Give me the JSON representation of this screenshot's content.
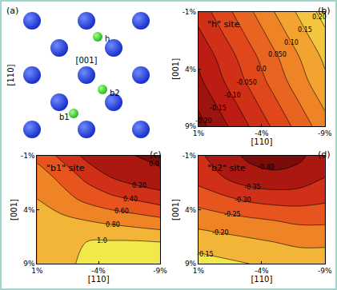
{
  "diagram": {
    "panel": "(a)",
    "sites": [
      "h",
      "b1",
      "b2"
    ],
    "x_axis_label": "[001]",
    "y_axis_label": "[110]"
  },
  "chart_data": [
    {
      "type": "contour",
      "panel": "(b)",
      "label": "\"h\" site",
      "x_label": "[110]",
      "y_label": "[001]",
      "x": [
        -9,
        -7,
        -5,
        -3,
        -1,
        1
      ],
      "y": [
        -1,
        1,
        3,
        5,
        7,
        9
      ],
      "z": [
        [
          0.22,
          0.16,
          0.1,
          0.04,
          -0.02,
          -0.08
        ],
        [
          0.19,
          0.13,
          0.07,
          0.01,
          -0.05,
          -0.11
        ],
        [
          0.16,
          0.1,
          0.04,
          -0.02,
          -0.08,
          -0.14
        ],
        [
          0.14,
          0.08,
          0.02,
          -0.04,
          -0.1,
          -0.16
        ],
        [
          0.11,
          0.05,
          -0.01,
          -0.07,
          -0.13,
          -0.19
        ],
        [
          0.08,
          0.02,
          -0.04,
          -0.1,
          -0.16,
          -0.22
        ]
      ],
      "xlim": [
        1,
        -9
      ],
      "ylim": [
        9,
        -1
      ],
      "xticks": [
        {
          "value": 1,
          "label": "1%"
        },
        {
          "value": -4,
          "label": "-4%"
        },
        {
          "value": -9,
          "label": "-9%"
        }
      ],
      "yticks": [
        {
          "value": -1,
          "label": "-1%"
        },
        {
          "value": 4,
          "label": "4%"
        },
        {
          "value": 9,
          "label": "9%"
        }
      ],
      "contour_levels": [
        {
          "value": -0.2,
          "label": "-0.20"
        },
        {
          "value": -0.15,
          "label": "-0.15"
        },
        {
          "value": -0.1,
          "label": "-0.10"
        },
        {
          "value": -0.05,
          "label": "-0.050"
        },
        {
          "value": 0,
          "label": "0.0"
        },
        {
          "value": 0.05,
          "label": "0.050"
        },
        {
          "value": 0.1,
          "label": "0.10"
        },
        {
          "value": 0.15,
          "label": "0.15"
        },
        {
          "value": 0.2,
          "label": "0.20"
        }
      ]
    },
    {
      "type": "contour",
      "panel": "(c)",
      "label": "\"b1\" site",
      "x_label": "[110]",
      "y_label": "[001]",
      "x": [
        -9,
        -7,
        -5,
        -3,
        -1,
        1
      ],
      "y": [
        -1,
        1,
        3,
        5,
        7,
        9
      ],
      "z": [
        [
          -0.05,
          0.0,
          0.05,
          0.15,
          0.35,
          0.55
        ],
        [
          0.05,
          0.1,
          0.2,
          0.35,
          0.55,
          0.7
        ],
        [
          0.3,
          0.38,
          0.45,
          0.55,
          0.68,
          0.8
        ],
        [
          0.65,
          0.7,
          0.75,
          0.8,
          0.85,
          0.9
        ],
        [
          1.0,
          1.02,
          1.02,
          1.0,
          0.95,
          0.88
        ],
        [
          1.03,
          1.04,
          1.05,
          1.06,
          0.92,
          0.82
        ]
      ],
      "xlim": [
        1,
        -9
      ],
      "ylim": [
        9,
        -1
      ],
      "xticks": [
        {
          "value": 1,
          "label": "1%"
        },
        {
          "value": -4,
          "label": "-4%"
        },
        {
          "value": -9,
          "label": "-9%"
        }
      ],
      "yticks": [
        {
          "value": -1,
          "label": "-1%"
        },
        {
          "value": 4,
          "label": "4%"
        },
        {
          "value": 9,
          "label": "9%"
        }
      ],
      "contour_levels": [
        {
          "value": 0,
          "label": "0.0"
        },
        {
          "value": 0.2,
          "label": "0.20"
        },
        {
          "value": 0.4,
          "label": "0.40"
        },
        {
          "value": 0.6,
          "label": "0.60"
        },
        {
          "value": 0.8,
          "label": "0.80"
        },
        {
          "value": 1.0,
          "label": "1.0"
        }
      ]
    },
    {
      "type": "contour",
      "panel": "(d)",
      "label": "\"b2\" site",
      "x_label": "[110]",
      "y_label": "[001]",
      "x": [
        -9,
        -7,
        -5,
        -3,
        -1,
        1
      ],
      "y": [
        -1,
        1,
        3,
        5,
        7,
        9
      ],
      "z": [
        [
          -0.37,
          -0.41,
          -0.42,
          -0.41,
          -0.38,
          -0.34
        ],
        [
          -0.35,
          -0.38,
          -0.39,
          -0.38,
          -0.35,
          -0.32
        ],
        [
          -0.31,
          -0.32,
          -0.32,
          -0.31,
          -0.29,
          -0.27
        ],
        [
          -0.26,
          -0.26,
          -0.25,
          -0.24,
          -0.23,
          -0.22
        ],
        [
          -0.21,
          -0.21,
          -0.2,
          -0.19,
          -0.18,
          -0.17
        ],
        [
          -0.17,
          -0.17,
          -0.16,
          -0.15,
          -0.14,
          -0.13
        ]
      ],
      "xlim": [
        1,
        -9
      ],
      "ylim": [
        9,
        -1
      ],
      "xticks": [
        {
          "value": 1,
          "label": "1%"
        },
        {
          "value": -4,
          "label": "-4%"
        },
        {
          "value": -9,
          "label": "-9%"
        }
      ],
      "yticks": [
        {
          "value": -1,
          "label": "-1%"
        },
        {
          "value": 4,
          "label": "4%"
        },
        {
          "value": 9,
          "label": "9%"
        }
      ],
      "contour_levels": [
        {
          "value": -0.4,
          "label": "-0.40"
        },
        {
          "value": -0.35,
          "label": "-0.35"
        },
        {
          "value": -0.3,
          "label": "-0.30"
        },
        {
          "value": -0.25,
          "label": "-0.25"
        },
        {
          "value": -0.2,
          "label": "-0.20"
        },
        {
          "value": -0.15,
          "label": "-0.15"
        }
      ]
    }
  ]
}
